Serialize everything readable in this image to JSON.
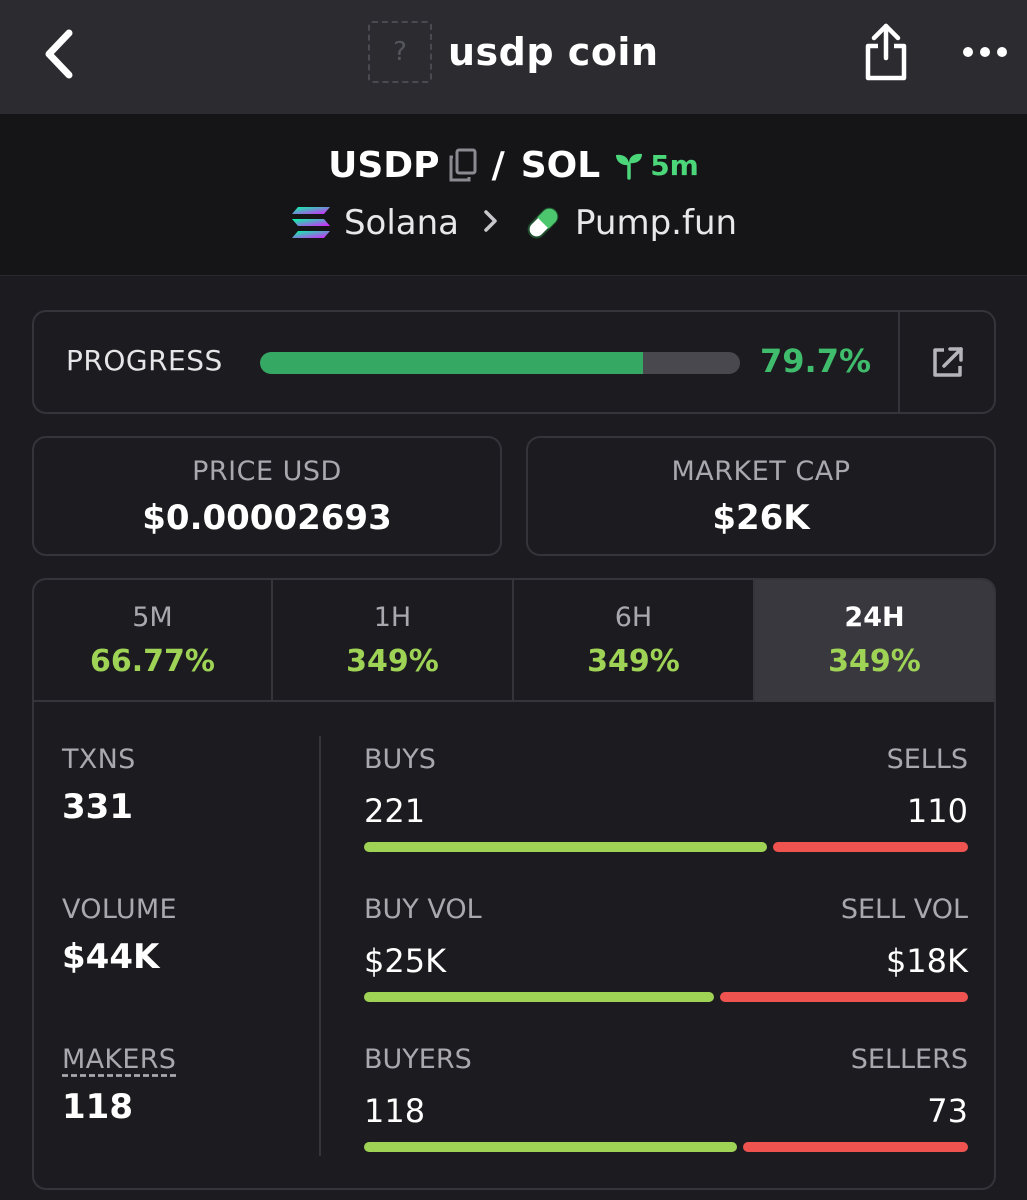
{
  "nav": {
    "title": "usdp coin",
    "token_placeholder_glyph": "?"
  },
  "pair": {
    "base": "USDP",
    "separator": "/",
    "quote": "SOL",
    "age": "5m",
    "chain": "Solana",
    "dex": "Pump.fun"
  },
  "progress": {
    "label": "PROGRESS",
    "value_text": "79.7%",
    "fraction": 0.797
  },
  "stats": {
    "price": {
      "label": "PRICE USD",
      "value": "$0.00002693"
    },
    "market_cap": {
      "label": "MARKET CAP",
      "value": "$26K"
    }
  },
  "timeframes": [
    {
      "label": "5M",
      "change": "66.77%",
      "active": false
    },
    {
      "label": "1H",
      "change": "349%",
      "active": false
    },
    {
      "label": "6H",
      "change": "349%",
      "active": false
    },
    {
      "label": "24H",
      "change": "349%",
      "active": true
    }
  ],
  "metrics": {
    "txns": {
      "label": "TXNS",
      "value": "331"
    },
    "volume": {
      "label": "VOLUME",
      "value": "$44K"
    },
    "makers": {
      "label": "MAKERS",
      "value": "118"
    }
  },
  "splits": {
    "txns": {
      "left_label": "BUYS",
      "right_label": "SELLS",
      "left_value": "221",
      "right_value": "110",
      "buy_share": 0.668
    },
    "volume": {
      "left_label": "BUY VOL",
      "right_label": "SELL VOL",
      "left_value": "$25K",
      "right_value": "$18K",
      "buy_share": 0.58
    },
    "makers": {
      "left_label": "BUYERS",
      "right_label": "SELLERS",
      "left_value": "118",
      "right_value": "73",
      "buy_share": 0.618
    }
  },
  "colors": {
    "accent_green": "#35a964",
    "change_green": "#9fd356",
    "sell_red": "#ef5350",
    "age_green": "#4cd67a"
  }
}
